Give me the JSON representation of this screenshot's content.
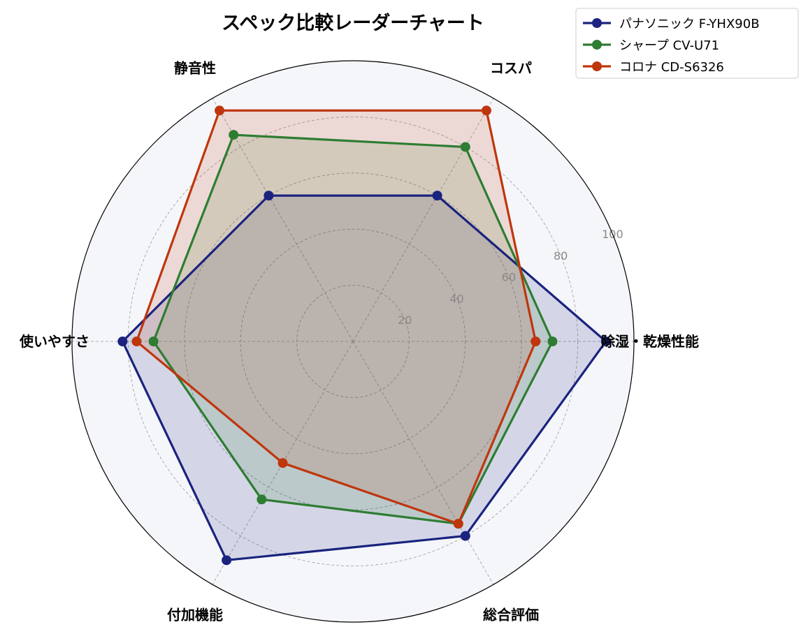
{
  "chart_data": {
    "type": "radar",
    "title": "スペック比較レーダーチャート",
    "axes": [
      "除湿・乾燥性能",
      "コスパ",
      "静音性",
      "使いやすさ",
      "付加機能",
      "総合評価"
    ],
    "rlim": [
      0,
      100
    ],
    "r_ticks": [
      "20",
      "40",
      "60",
      "80",
      "100"
    ],
    "grid": true,
    "legend_position": "top-right",
    "series": [
      {
        "name": "パナソニック F-YHX90B",
        "color": "#1a237e",
        "values": [
          90,
          60,
          60,
          82,
          90,
          80
        ]
      },
      {
        "name": "シャープ CV-U71",
        "color": "#2e7d32",
        "values": [
          71,
          80,
          85,
          71,
          65,
          75
        ]
      },
      {
        "name": "コロナ CD-S6326",
        "color": "#bf360c",
        "values": [
          65,
          95,
          95,
          77,
          50,
          75
        ]
      }
    ]
  }
}
